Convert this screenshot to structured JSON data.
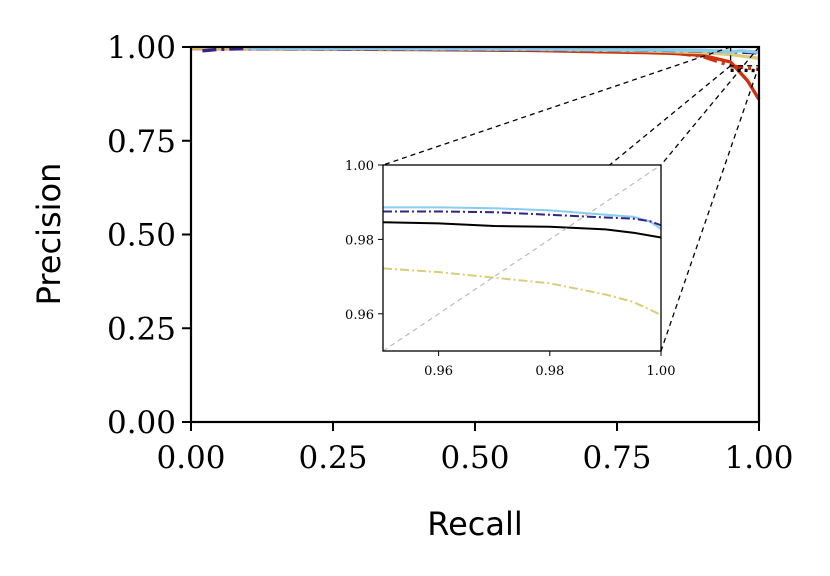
{
  "chart_data": [
    {
      "type": "line",
      "role": "main",
      "xlabel": "Recall",
      "ylabel": "Precision",
      "xlim": [
        0,
        1
      ],
      "ylim": [
        0,
        1
      ],
      "xticks": [
        "0.00",
        "0.25",
        "0.50",
        "0.75",
        "1.00"
      ],
      "yticks": [
        "0.00",
        "0.25",
        "0.50",
        "0.75",
        "1.00"
      ],
      "grid": false,
      "legend": "none",
      "series": [
        {
          "color": "#cc3311",
          "dash": "solid",
          "x": [
            0.0,
            0.2,
            0.4,
            0.6,
            0.7,
            0.8,
            0.85,
            0.9,
            0.95,
            0.98,
            1.0
          ],
          "y": [
            0.996,
            0.995,
            0.993,
            0.991,
            0.988,
            0.985,
            0.983,
            0.978,
            0.96,
            0.91,
            0.86
          ]
        },
        {
          "color": "#cc3311",
          "dash": "dashdot",
          "x": [
            0.0,
            0.2,
            0.4,
            0.6,
            0.7,
            0.8,
            0.85,
            0.9,
            0.95,
            1.0
          ],
          "y": [
            0.997,
            0.996,
            0.994,
            0.992,
            0.99,
            0.988,
            0.984,
            0.975,
            0.95,
            0.94
          ]
        },
        {
          "color": "#ddcc77",
          "dash": "solid",
          "x": [
            0.0,
            0.2,
            0.4,
            0.6,
            0.8,
            0.9,
            0.95,
            1.0
          ],
          "y": [
            0.997,
            0.996,
            0.995,
            0.994,
            0.99,
            0.985,
            0.98,
            0.97
          ]
        },
        {
          "color": "#332288",
          "dash": "dashdot",
          "x": [
            0.02,
            0.05,
            0.1,
            0.3,
            0.5,
            0.7,
            0.9,
            0.95,
            1.0
          ],
          "y": [
            0.99,
            0.994,
            0.996,
            0.995,
            0.994,
            0.993,
            0.99,
            0.988,
            0.984
          ]
        },
        {
          "color": "#88ccee",
          "dash": "solid",
          "x": [
            0.1,
            0.3,
            0.5,
            0.7,
            0.9,
            0.95,
            0.97,
            1.0
          ],
          "y": [
            0.997,
            0.996,
            0.995,
            0.994,
            0.991,
            0.988,
            0.99,
            0.986
          ]
        },
        {
          "color": "#000000",
          "dash": "dotted",
          "x": [
            0.95,
            0.97,
            1.0
          ],
          "y": [
            0.938,
            0.938,
            0.937
          ]
        }
      ]
    },
    {
      "type": "line",
      "role": "inset",
      "xlim": [
        0.95,
        1.0
      ],
      "ylim": [
        0.95,
        1.0
      ],
      "xticks": [
        "0.96",
        "0.98",
        "1.00"
      ],
      "yticks": [
        "0.96",
        "0.98",
        "1.00"
      ],
      "xtick_values": [
        0.96,
        0.98,
        1.0
      ],
      "ytick_values": [
        0.96,
        0.98,
        1.0
      ],
      "series": [
        {
          "color": "#88ccee",
          "dash": "solid",
          "x": [
            0.95,
            0.96,
            0.97,
            0.98,
            0.99,
            0.995,
            0.998,
            1.0
          ],
          "y": [
            0.9886,
            0.9886,
            0.9884,
            0.9878,
            0.9866,
            0.9861,
            0.9848,
            0.9828
          ]
        },
        {
          "color": "#332288",
          "dash": "dashdot",
          "x": [
            0.95,
            0.96,
            0.97,
            0.98,
            0.99,
            0.995,
            0.998,
            1.0
          ],
          "y": [
            0.9875,
            0.9875,
            0.9873,
            0.9866,
            0.9859,
            0.9856,
            0.9849,
            0.9838
          ]
        },
        {
          "color": "#000000",
          "dash": "solid",
          "x": [
            0.95,
            0.96,
            0.97,
            0.98,
            0.99,
            0.995,
            1.0
          ],
          "y": [
            0.9846,
            0.9843,
            0.9836,
            0.9834,
            0.9827,
            0.9818,
            0.9805
          ]
        },
        {
          "color": "#ddcc77",
          "dash": "dashdot",
          "x": [
            0.95,
            0.96,
            0.97,
            0.98,
            0.99,
            0.995,
            1.0
          ],
          "y": [
            0.9722,
            0.9712,
            0.9697,
            0.9682,
            0.9652,
            0.9632,
            0.9597
          ]
        },
        {
          "color": "#bbbbbb",
          "dash": "dashed",
          "x": [
            0.95,
            1.0
          ],
          "y": [
            0.95,
            1.0
          ]
        }
      ]
    }
  ]
}
